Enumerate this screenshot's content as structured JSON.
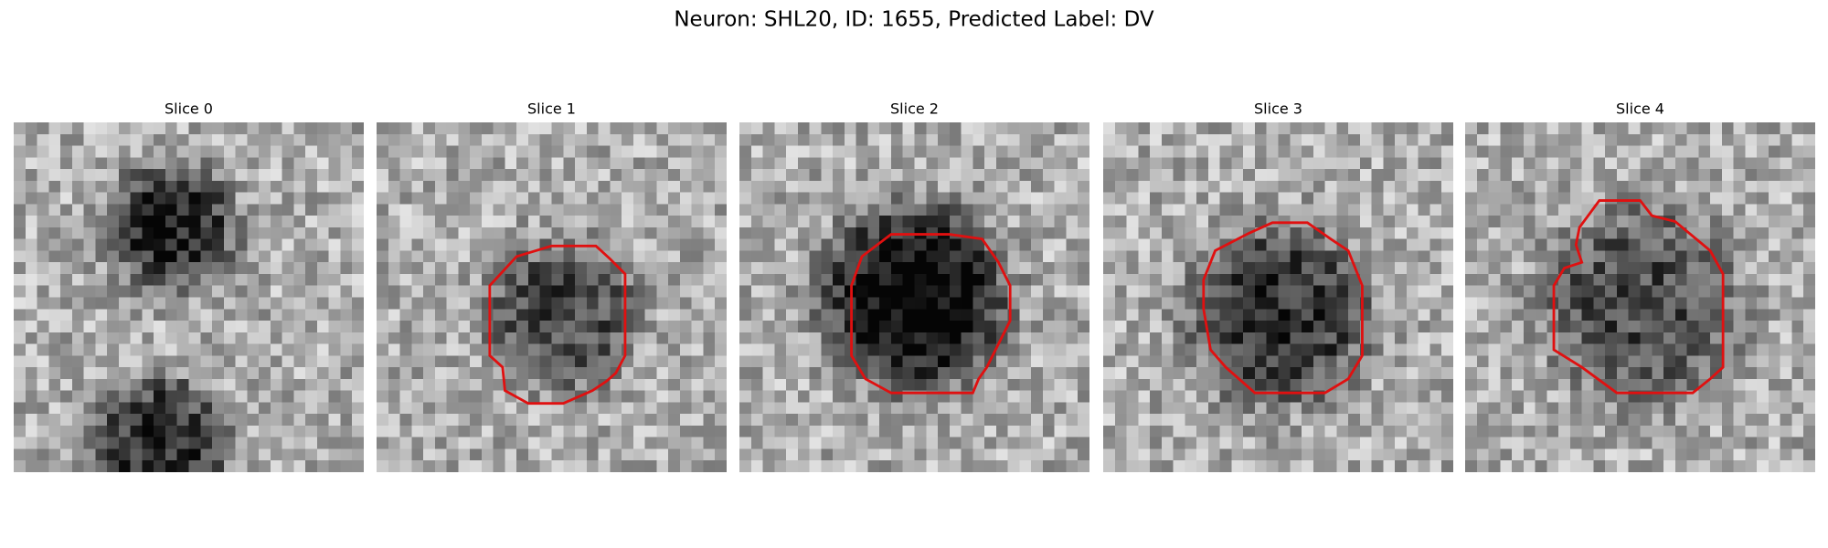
{
  "header": {
    "title": "Neuron: SHL20, ID: 1655, Predicted Label: DV"
  },
  "panels": [
    {
      "title": "Slice 0"
    },
    {
      "title": "Slice 1"
    },
    {
      "title": "Slice 2"
    },
    {
      "title": "Slice 3"
    },
    {
      "title": "Slice 4"
    }
  ]
}
